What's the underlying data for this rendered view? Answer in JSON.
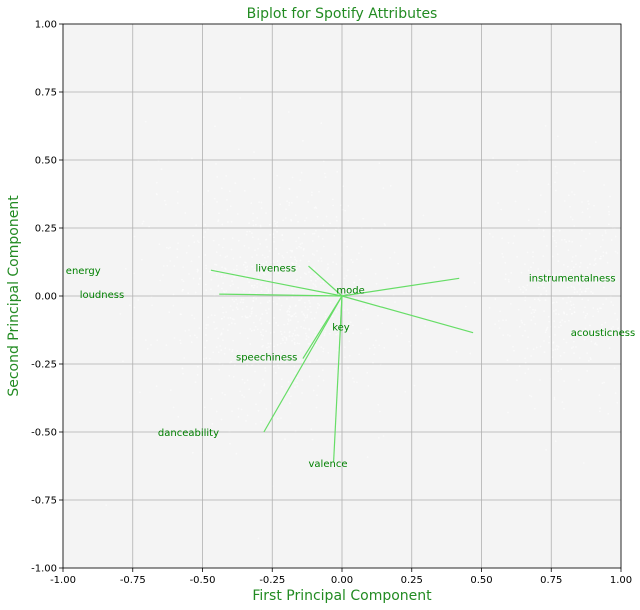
{
  "chart_data": {
    "type": "scatter",
    "title": "Biplot for Spotify Attributes",
    "xlabel": "First Principal Component",
    "ylabel": "Second Principal Component",
    "xlim": [
      -1.0,
      1.0
    ],
    "ylim": [
      -1.0,
      1.0
    ],
    "xticks": [
      "-1.00",
      "-0.75",
      "-0.50",
      "-0.25",
      "0.00",
      "0.25",
      "0.50",
      "0.75",
      "1.00"
    ],
    "yticks": [
      "1.00",
      "0.75",
      "0.50",
      "0.25",
      "0.00",
      "-0.25",
      "-0.50",
      "-0.75",
      "-1.00"
    ],
    "grid": true,
    "colors": {
      "title": "#228b22",
      "axis_titles": "#228b22",
      "var_labels": "#008000",
      "arrows": "#66dd66",
      "plot_background": "#f4f4f4",
      "scatter_points": "#ffffff",
      "grid": "#b0b0b0"
    },
    "loadings": [
      {
        "name": "energy",
        "x": -0.47,
        "y": 0.095
      },
      {
        "name": "loudness",
        "x": -0.44,
        "y": 0.007
      },
      {
        "name": "liveness",
        "x": -0.12,
        "y": 0.11
      },
      {
        "name": "mode",
        "x": 0.02,
        "y": 0.005
      },
      {
        "name": "instrumentalness",
        "x": 0.42,
        "y": 0.065
      },
      {
        "name": "acousticness",
        "x": 0.47,
        "y": -0.135
      },
      {
        "name": "key",
        "x": -0.005,
        "y": -0.11
      },
      {
        "name": "speechiness",
        "x": -0.14,
        "y": -0.23
      },
      {
        "name": "danceability",
        "x": -0.28,
        "y": -0.5
      },
      {
        "name": "valence",
        "x": -0.03,
        "y": -0.61
      }
    ],
    "label_positions": [
      {
        "name": "energy",
        "x": -0.99,
        "y": 0.095
      },
      {
        "name": "loudness",
        "x": -0.94,
        "y": 0.007
      },
      {
        "name": "liveness",
        "x": -0.31,
        "y": 0.105
      },
      {
        "name": "mode",
        "x": -0.02,
        "y": 0.023
      },
      {
        "name": "instrumentalness",
        "x": 0.67,
        "y": 0.068
      },
      {
        "name": "acousticness",
        "x": 0.82,
        "y": -0.133
      },
      {
        "name": "key",
        "x": -0.035,
        "y": -0.112
      },
      {
        "name": "speechiness",
        "x": -0.38,
        "y": -0.222
      },
      {
        "name": "danceability",
        "x": -0.66,
        "y": -0.5
      },
      {
        "name": "valence",
        "x": -0.12,
        "y": -0.614
      }
    ]
  }
}
